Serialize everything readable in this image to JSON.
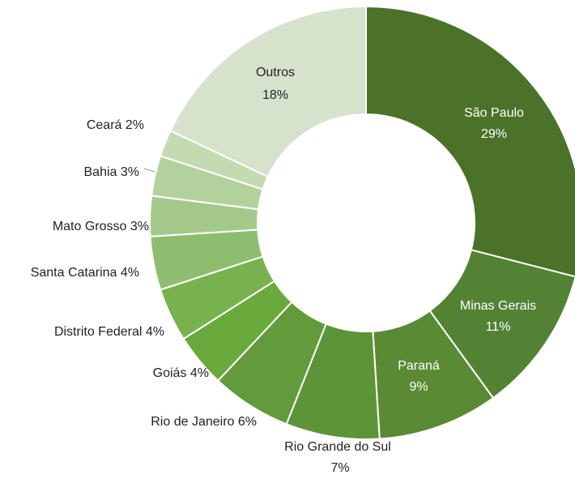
{
  "chart_data": {
    "type": "donut",
    "categories": [
      "São Paulo",
      "Minas Gerais",
      "Paraná",
      "Rio Grande do Sul",
      "Rio de Janeiro",
      "Goiás",
      "Distrito Federal",
      "Santa Catarina",
      "Mato Grosso",
      "Bahia",
      "Ceará",
      "Outros"
    ],
    "values": [
      29,
      11,
      9,
      7,
      6,
      4,
      4,
      4,
      3,
      3,
      2,
      18
    ],
    "value_labels": [
      "29%",
      "11%",
      "9%",
      "7%",
      "6%",
      "4%",
      "4%",
      "4%",
      "3%",
      "3%",
      "2%",
      "18%"
    ],
    "colors": [
      "#4a7229",
      "#548235",
      "#5b8a35",
      "#5e9438",
      "#639a3b",
      "#6aaa3c",
      "#78b24f",
      "#8fbd6f",
      "#a3c98a",
      "#b3d19d",
      "#c4dbb2",
      "#d6e2cc"
    ]
  }
}
